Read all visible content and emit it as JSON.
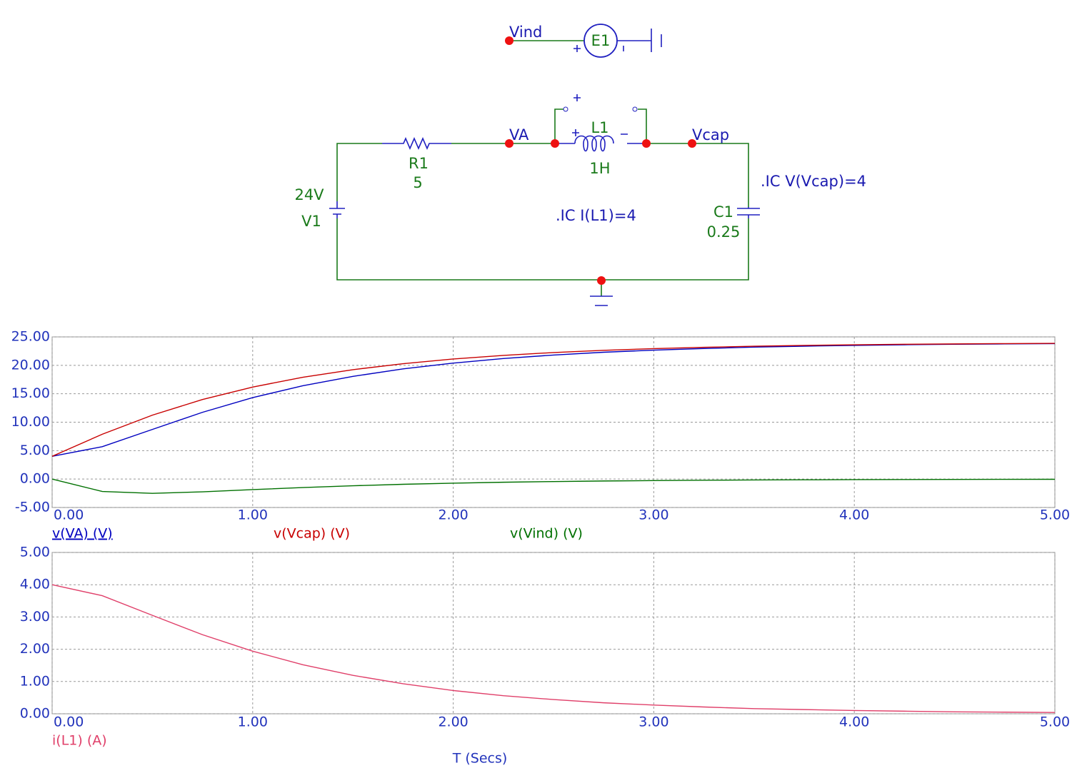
{
  "schematic": {
    "vind": "Vind",
    "e1": "E1",
    "va": "VA",
    "vcap": "Vcap",
    "l1": "L1",
    "l1_value": "1H",
    "r1": "R1",
    "r1_value": "5",
    "v1_value": "24V",
    "v1": "V1",
    "c1": "C1",
    "c1_value": "0.25",
    "ic_cap": ".IC V(Vcap)=4",
    "ic_ind": ".IC I(L1)=4"
  },
  "chart_data": [
    {
      "type": "line",
      "x": [
        0,
        0.25,
        0.5,
        0.75,
        1,
        1.25,
        1.5,
        1.75,
        2,
        2.25,
        2.5,
        2.75,
        3,
        3.25,
        3.5,
        3.75,
        4,
        4.25,
        4.5,
        4.75,
        5
      ],
      "series": [
        {
          "name": "v(VA) (V)",
          "color": "#0000c0",
          "values": [
            4,
            5.69,
            8.73,
            11.74,
            14.32,
            16.41,
            18.06,
            19.37,
            20.39,
            21.19,
            21.81,
            22.3,
            22.67,
            22.96,
            23.2,
            23.37,
            23.51,
            23.62,
            23.7,
            23.77,
            23.82
          ]
        },
        {
          "name": "v(Vcap) (V)",
          "color": "#c80000",
          "values": [
            4,
            7.88,
            11.24,
            13.99,
            16.18,
            17.9,
            19.24,
            20.29,
            21.11,
            21.75,
            22.25,
            22.64,
            22.94,
            23.17,
            23.36,
            23.5,
            23.61,
            23.7,
            23.76,
            23.82,
            23.86
          ]
        },
        {
          "name": "v(Vind) (V)",
          "color": "#007000",
          "values": [
            0,
            -2.19,
            -2.51,
            -2.25,
            -1.86,
            -1.49,
            -1.18,
            -0.92,
            -0.72,
            -0.56,
            -0.44,
            -0.34,
            -0.27,
            -0.21,
            -0.16,
            -0.13,
            -0.1,
            -0.08,
            -0.06,
            -0.05,
            -0.04
          ]
        }
      ],
      "xlim": [
        0,
        5
      ],
      "ylim": [
        -5,
        25
      ],
      "xticks": [
        {
          "value": 0,
          "label": "0.00"
        },
        {
          "value": 1,
          "label": "1.00"
        },
        {
          "value": 2,
          "label": "2.00"
        },
        {
          "value": 3,
          "label": "3.00"
        },
        {
          "value": 4,
          "label": "4.00"
        },
        {
          "value": 5,
          "label": "5.00"
        }
      ],
      "yticks": [
        {
          "value": -5,
          "label": "-5.00"
        },
        {
          "value": 0,
          "label": "0.00"
        },
        {
          "value": 5,
          "label": "5.00"
        },
        {
          "value": 10,
          "label": "10.00"
        },
        {
          "value": 15,
          "label": "15.00"
        },
        {
          "value": 20,
          "label": "20.00"
        },
        {
          "value": 25,
          "label": "25.00"
        }
      ],
      "grid": true
    },
    {
      "type": "line",
      "x": [
        0,
        0.25,
        0.5,
        0.75,
        1,
        1.25,
        1.5,
        1.75,
        2,
        2.25,
        2.5,
        2.75,
        3,
        3.25,
        3.5,
        3.75,
        4,
        4.25,
        4.5,
        4.75,
        5
      ],
      "series": [
        {
          "name": "i(L1) (A)",
          "color": "#e0406a",
          "values": [
            4,
            3.66,
            3.05,
            2.45,
            1.94,
            1.52,
            1.19,
            0.93,
            0.72,
            0.56,
            0.44,
            0.34,
            0.27,
            0.21,
            0.16,
            0.13,
            0.1,
            0.08,
            0.06,
            0.05,
            0.04
          ]
        }
      ],
      "xlabel": "T (Secs)",
      "xlim": [
        0,
        5
      ],
      "ylim": [
        0,
        5
      ],
      "xticks": [
        {
          "value": 0,
          "label": "0.00"
        },
        {
          "value": 1,
          "label": "1.00"
        },
        {
          "value": 2,
          "label": "2.00"
        },
        {
          "value": 3,
          "label": "3.00"
        },
        {
          "value": 4,
          "label": "4.00"
        },
        {
          "value": 5,
          "label": "5.00"
        }
      ],
      "yticks": [
        {
          "value": 0,
          "label": "0.00"
        },
        {
          "value": 1,
          "label": "1.00"
        },
        {
          "value": 2,
          "label": "2.00"
        },
        {
          "value": 3,
          "label": "3.00"
        },
        {
          "value": 4,
          "label": "4.00"
        },
        {
          "value": 5,
          "label": "5.00"
        }
      ],
      "grid": true
    }
  ]
}
